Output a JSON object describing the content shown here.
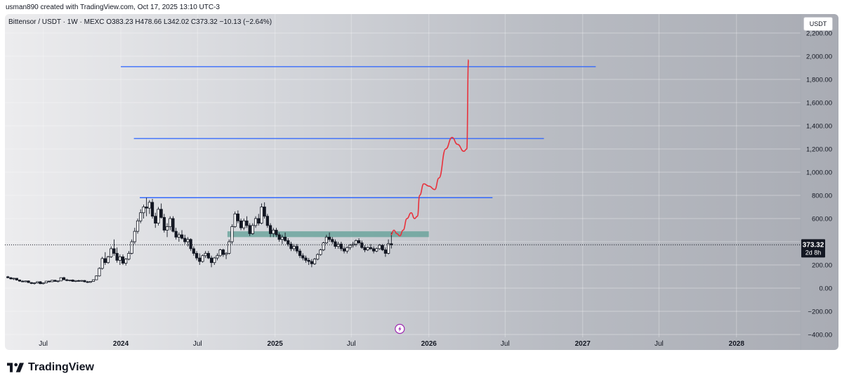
{
  "header": {
    "attribution": "usman890 created with TradingView.com, Oct 17, 2025 13:10 UTC-3"
  },
  "legend": {
    "text": "Bittensor / USDT · 1W · MEXC  O383.23  H478.66  L342.02  C373.32  −10.13 (−2.64%)"
  },
  "currency_button": "USDT",
  "footer": {
    "brand": "TradingView"
  },
  "colors": {
    "candle": "#131722",
    "projection": "#e8323c",
    "level": "#2962ff",
    "zone": "#5f9f95"
  },
  "chart_data": {
    "type": "candlestick",
    "symbol": "Bittensor / USDT",
    "interval": "1W",
    "exchange": "MEXC",
    "ohlc_last": {
      "open": 383.23,
      "high": 478.66,
      "low": 342.02,
      "close": 373.32,
      "change": -10.13,
      "change_pct": -2.64
    },
    "ylim": [
      -400,
      2200
    ],
    "y_ticks": [
      -400,
      -200,
      0,
      200,
      400,
      600,
      800,
      1000,
      1200,
      1400,
      1600,
      1800,
      2000,
      2200
    ],
    "y_tick_labels": [
      "−400.00",
      "−200.00",
      "0.00",
      "200.00",
      "",
      "600.00",
      "800.00",
      "1,000.00",
      "1,200.00",
      "1,400.00",
      "1,600.00",
      "1,800.00",
      "2,000.00",
      "2,200.00"
    ],
    "x_range": [
      "2023-04-01",
      "2028-06-01"
    ],
    "x_ticks": [
      {
        "date": "2023-07-01",
        "label": "Jul"
      },
      {
        "date": "2024-01-01",
        "label": "2024",
        "bold": true
      },
      {
        "date": "2024-07-01",
        "label": "Jul"
      },
      {
        "date": "2025-01-01",
        "label": "2025",
        "bold": true
      },
      {
        "date": "2025-07-01",
        "label": "Jul"
      },
      {
        "date": "2026-01-01",
        "label": "2026",
        "bold": true
      },
      {
        "date": "2026-07-01",
        "label": "Jul"
      },
      {
        "date": "2027-01-01",
        "label": "2027",
        "bold": true
      },
      {
        "date": "2027-07-01",
        "label": "Jul"
      },
      {
        "date": "2028-01-01",
        "label": "2028",
        "bold": true
      }
    ],
    "price_label": {
      "value": "373.32",
      "countdown": "2d 8h"
    },
    "horizontal_levels": [
      {
        "value": 1910,
        "from": "2024-01-01",
        "to": "2027-02-01"
      },
      {
        "value": 1290,
        "from": "2024-02-01",
        "to": "2026-10-01"
      },
      {
        "value": 780,
        "from": "2024-02-15",
        "to": "2026-06-01"
      }
    ],
    "zone": {
      "from": "2024-09-10",
      "to": "2026-01-01",
      "low": 440,
      "high": 490
    },
    "projection_path": [
      [
        "2025-10-03",
        460
      ],
      [
        "2025-10-10",
        500
      ],
      [
        "2025-10-17",
        470
      ],
      [
        "2025-10-24",
        450
      ],
      [
        "2025-11-01",
        500
      ],
      [
        "2025-11-10",
        600
      ],
      [
        "2025-11-20",
        650
      ],
      [
        "2025-11-28",
        600
      ],
      [
        "2025-12-05",
        620
      ],
      [
        "2025-12-10",
        800
      ],
      [
        "2025-12-20",
        900
      ],
      [
        "2026-01-01",
        880
      ],
      [
        "2026-01-15",
        850
      ],
      [
        "2026-01-25",
        950
      ],
      [
        "2026-02-10",
        1200
      ],
      [
        "2026-02-25",
        1300
      ],
      [
        "2026-03-10",
        1240
      ],
      [
        "2026-03-25",
        1180
      ],
      [
        "2026-04-01",
        1200
      ],
      [
        "2026-04-05",
        1970
      ]
    ],
    "candles": [
      [
        "2023-04-03",
        98,
        105,
        85,
        90
      ],
      [
        "2023-04-10",
        90,
        95,
        75,
        80
      ],
      [
        "2023-04-17",
        80,
        90,
        70,
        85
      ],
      [
        "2023-04-24",
        85,
        88,
        65,
        70
      ],
      [
        "2023-05-01",
        70,
        75,
        55,
        60
      ],
      [
        "2023-05-08",
        60,
        68,
        52,
        55
      ],
      [
        "2023-05-15",
        55,
        65,
        50,
        62
      ],
      [
        "2023-05-22",
        62,
        66,
        45,
        48
      ],
      [
        "2023-05-29",
        48,
        52,
        35,
        40
      ],
      [
        "2023-06-05",
        40,
        50,
        30,
        45
      ],
      [
        "2023-06-12",
        45,
        58,
        40,
        55
      ],
      [
        "2023-06-19",
        55,
        60,
        35,
        38
      ],
      [
        "2023-06-26",
        38,
        48,
        32,
        45
      ],
      [
        "2023-07-03",
        45,
        62,
        42,
        60
      ],
      [
        "2023-07-10",
        60,
        65,
        50,
        55
      ],
      [
        "2023-07-17",
        55,
        70,
        52,
        68
      ],
      [
        "2023-07-24",
        68,
        72,
        55,
        58
      ],
      [
        "2023-07-31",
        58,
        66,
        50,
        62
      ],
      [
        "2023-08-07",
        62,
        92,
        60,
        90
      ],
      [
        "2023-08-14",
        90,
        98,
        70,
        72
      ],
      [
        "2023-08-21",
        72,
        80,
        60,
        65
      ],
      [
        "2023-08-28",
        65,
        72,
        58,
        70
      ],
      [
        "2023-09-04",
        70,
        75,
        55,
        58
      ],
      [
        "2023-09-11",
        58,
        68,
        52,
        65
      ],
      [
        "2023-09-18",
        65,
        72,
        55,
        60
      ],
      [
        "2023-09-25",
        60,
        70,
        55,
        66
      ],
      [
        "2023-10-02",
        66,
        70,
        50,
        55
      ],
      [
        "2023-10-09",
        55,
        62,
        45,
        50
      ],
      [
        "2023-10-16",
        50,
        60,
        45,
        58
      ],
      [
        "2023-10-23",
        58,
        75,
        55,
        72
      ],
      [
        "2023-10-30",
        72,
        110,
        70,
        105
      ],
      [
        "2023-11-06",
        105,
        180,
        100,
        170
      ],
      [
        "2023-11-13",
        170,
        270,
        160,
        255
      ],
      [
        "2023-11-20",
        255,
        310,
        200,
        220
      ],
      [
        "2023-11-27",
        220,
        280,
        210,
        270
      ],
      [
        "2023-12-04",
        270,
        360,
        260,
        340
      ],
      [
        "2023-12-11",
        340,
        420,
        280,
        300
      ],
      [
        "2023-12-18",
        300,
        350,
        220,
        240
      ],
      [
        "2023-12-25",
        240,
        290,
        200,
        270
      ],
      [
        "2024-01-01",
        270,
        290,
        200,
        215
      ],
      [
        "2024-01-08",
        215,
        260,
        195,
        250
      ],
      [
        "2024-01-15",
        250,
        320,
        240,
        300
      ],
      [
        "2024-01-22",
        300,
        420,
        290,
        400
      ],
      [
        "2024-01-29",
        400,
        520,
        380,
        490
      ],
      [
        "2024-02-05",
        490,
        600,
        470,
        580
      ],
      [
        "2024-02-12",
        580,
        680,
        560,
        650
      ],
      [
        "2024-02-19",
        650,
        720,
        600,
        700
      ],
      [
        "2024-02-26",
        700,
        780,
        620,
        690
      ],
      [
        "2024-03-04",
        690,
        760,
        640,
        740
      ],
      [
        "2024-03-11",
        740,
        770,
        600,
        620
      ],
      [
        "2024-03-18",
        620,
        650,
        520,
        560
      ],
      [
        "2024-03-25",
        560,
        700,
        540,
        680
      ],
      [
        "2024-04-01",
        680,
        730,
        600,
        610
      ],
      [
        "2024-04-08",
        610,
        640,
        480,
        500
      ],
      [
        "2024-04-15",
        500,
        560,
        440,
        530
      ],
      [
        "2024-04-22",
        530,
        620,
        500,
        600
      ],
      [
        "2024-04-29",
        600,
        620,
        480,
        490
      ],
      [
        "2024-05-06",
        490,
        520,
        420,
        440
      ],
      [
        "2024-05-13",
        440,
        480,
        400,
        460
      ],
      [
        "2024-05-20",
        460,
        500,
        420,
        430
      ],
      [
        "2024-05-27",
        430,
        460,
        380,
        400
      ],
      [
        "2024-06-03",
        400,
        440,
        360,
        420
      ],
      [
        "2024-06-10",
        420,
        430,
        320,
        340
      ],
      [
        "2024-06-17",
        340,
        360,
        280,
        300
      ],
      [
        "2024-06-24",
        300,
        320,
        240,
        260
      ],
      [
        "2024-07-01",
        260,
        300,
        200,
        230
      ],
      [
        "2024-07-08",
        230,
        290,
        220,
        280
      ],
      [
        "2024-07-15",
        280,
        320,
        260,
        300
      ],
      [
        "2024-07-22",
        300,
        320,
        250,
        260
      ],
      [
        "2024-07-29",
        260,
        280,
        180,
        220
      ],
      [
        "2024-08-05",
        220,
        270,
        200,
        260
      ],
      [
        "2024-08-12",
        260,
        300,
        240,
        280
      ],
      [
        "2024-08-19",
        280,
        340,
        270,
        330
      ],
      [
        "2024-08-26",
        330,
        340,
        270,
        290
      ],
      [
        "2024-09-02",
        290,
        310,
        250,
        300
      ],
      [
        "2024-09-09",
        300,
        420,
        290,
        400
      ],
      [
        "2024-09-16",
        400,
        550,
        380,
        530
      ],
      [
        "2024-09-23",
        530,
        660,
        520,
        640
      ],
      [
        "2024-09-30",
        640,
        670,
        560,
        580
      ],
      [
        "2024-10-07",
        580,
        600,
        500,
        520
      ],
      [
        "2024-10-14",
        520,
        600,
        500,
        580
      ],
      [
        "2024-10-21",
        580,
        620,
        520,
        540
      ],
      [
        "2024-10-28",
        540,
        560,
        450,
        470
      ],
      [
        "2024-11-04",
        470,
        560,
        460,
        540
      ],
      [
        "2024-11-11",
        540,
        620,
        520,
        600
      ],
      [
        "2024-11-18",
        600,
        640,
        540,
        560
      ],
      [
        "2024-11-25",
        560,
        730,
        550,
        700
      ],
      [
        "2024-12-02",
        700,
        740,
        600,
        620
      ],
      [
        "2024-12-09",
        620,
        640,
        520,
        540
      ],
      [
        "2024-12-16",
        540,
        560,
        440,
        470
      ],
      [
        "2024-12-23",
        470,
        520,
        440,
        500
      ],
      [
        "2024-12-30",
        500,
        520,
        440,
        460
      ],
      [
        "2025-01-06",
        460,
        480,
        400,
        420
      ],
      [
        "2025-01-13",
        420,
        460,
        380,
        440
      ],
      [
        "2025-01-20",
        440,
        480,
        400,
        410
      ],
      [
        "2025-01-27",
        410,
        430,
        360,
        380
      ],
      [
        "2025-02-03",
        380,
        400,
        320,
        340
      ],
      [
        "2025-02-10",
        340,
        380,
        320,
        360
      ],
      [
        "2025-02-17",
        360,
        380,
        300,
        320
      ],
      [
        "2025-02-24",
        320,
        340,
        260,
        280
      ],
      [
        "2025-03-03",
        280,
        300,
        240,
        260
      ],
      [
        "2025-03-10",
        260,
        280,
        220,
        240
      ],
      [
        "2025-03-17",
        240,
        260,
        200,
        230
      ],
      [
        "2025-03-24",
        230,
        250,
        180,
        210
      ],
      [
        "2025-03-31",
        210,
        260,
        200,
        250
      ],
      [
        "2025-04-07",
        250,
        300,
        240,
        290
      ],
      [
        "2025-04-14",
        290,
        340,
        280,
        330
      ],
      [
        "2025-04-21",
        330,
        400,
        320,
        390
      ],
      [
        "2025-04-28",
        390,
        460,
        380,
        440
      ],
      [
        "2025-05-05",
        440,
        480,
        400,
        420
      ],
      [
        "2025-05-12",
        420,
        440,
        380,
        400
      ],
      [
        "2025-05-19",
        400,
        420,
        340,
        360
      ],
      [
        "2025-05-26",
        360,
        400,
        340,
        380
      ],
      [
        "2025-06-02",
        380,
        400,
        320,
        340
      ],
      [
        "2025-06-09",
        340,
        360,
        300,
        320
      ],
      [
        "2025-06-16",
        320,
        360,
        300,
        350
      ],
      [
        "2025-06-23",
        350,
        380,
        330,
        370
      ],
      [
        "2025-06-30",
        370,
        400,
        350,
        380
      ],
      [
        "2025-07-07",
        380,
        420,
        360,
        410
      ],
      [
        "2025-07-14",
        410,
        430,
        380,
        390
      ],
      [
        "2025-07-21",
        390,
        410,
        340,
        350
      ],
      [
        "2025-07-28",
        350,
        370,
        310,
        330
      ],
      [
        "2025-08-04",
        330,
        360,
        320,
        350
      ],
      [
        "2025-08-11",
        350,
        380,
        330,
        340
      ],
      [
        "2025-08-18",
        340,
        360,
        300,
        320
      ],
      [
        "2025-08-25",
        320,
        350,
        310,
        340
      ],
      [
        "2025-09-01",
        340,
        380,
        330,
        370
      ],
      [
        "2025-09-08",
        370,
        380,
        320,
        330
      ],
      [
        "2025-09-15",
        330,
        350,
        270,
        300
      ],
      [
        "2025-09-22",
        300,
        420,
        290,
        383
      ],
      [
        "2025-09-29",
        383,
        478.66,
        342.02,
        373.32
      ]
    ]
  }
}
